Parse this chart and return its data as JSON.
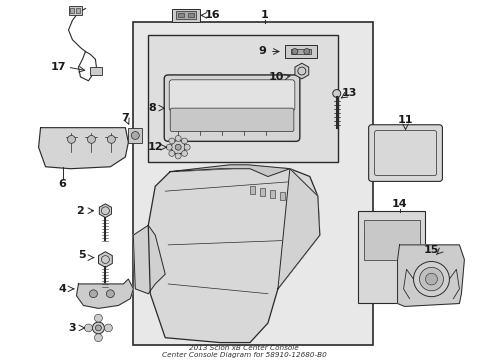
{
  "title": "2013 Scion xB Center Console\nCenter Console Diagram for 58910-12680-B0",
  "bg_color": "#ffffff",
  "main_bg": "#e8e8e8",
  "inner_bg": "#dedede",
  "line_color": "#2a2a2a",
  "text_color": "#1a1a1a",
  "figsize": [
    4.89,
    3.6
  ],
  "dpi": 100,
  "xlim": [
    0,
    489
  ],
  "ylim": [
    0,
    360
  ]
}
